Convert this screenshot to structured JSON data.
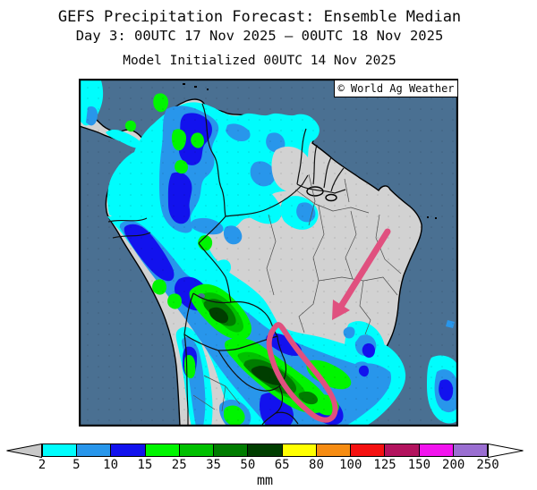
{
  "header": {
    "title": "GEFS Precipitation Forecast: Ensemble Median",
    "subtitle": "Day 3: 00UTC 17 Nov 2025 — 00UTC 18 Nov 2025",
    "init_line": "Model Initialized 00UTC 14 Nov 2025"
  },
  "map": {
    "watermark": "© World Ag Weather",
    "colors": {
      "ocean": "#4A7092",
      "land": "#D2D2D2",
      "coastline": "#000000",
      "annot": "#E0507F"
    }
  },
  "precip_palette": {
    "p2": "#00FDFD",
    "p5": "#2896EB",
    "p10": "#1212EE",
    "p15": "#00F500",
    "p25": "#00C000",
    "p35": "#007C00",
    "p50": "#003E00",
    "p65": "#FFFF00",
    "p80": "#F68C12",
    "p100": "#F51111",
    "p125": "#B3135E",
    "p150": "#F214EE",
    "p200": "#9A6ED1"
  },
  "colorbar": {
    "unit": "mm",
    "ticks": [
      "2",
      "5",
      "10",
      "15",
      "25",
      "35",
      "50",
      "65",
      "80",
      "100",
      "125",
      "150",
      "200",
      "250"
    ],
    "levels_mm": [
      2,
      5,
      10,
      15,
      25,
      35,
      50,
      65,
      80,
      100,
      125,
      150,
      200,
      250
    ],
    "segment_keys": [
      "p2",
      "p5",
      "p10",
      "p15",
      "p25",
      "p35",
      "p50",
      "p65",
      "p80",
      "p100",
      "p125",
      "p150",
      "p200"
    ],
    "underflow_color": "#C9C9C9",
    "overflow_color": "#FFFFFF"
  }
}
